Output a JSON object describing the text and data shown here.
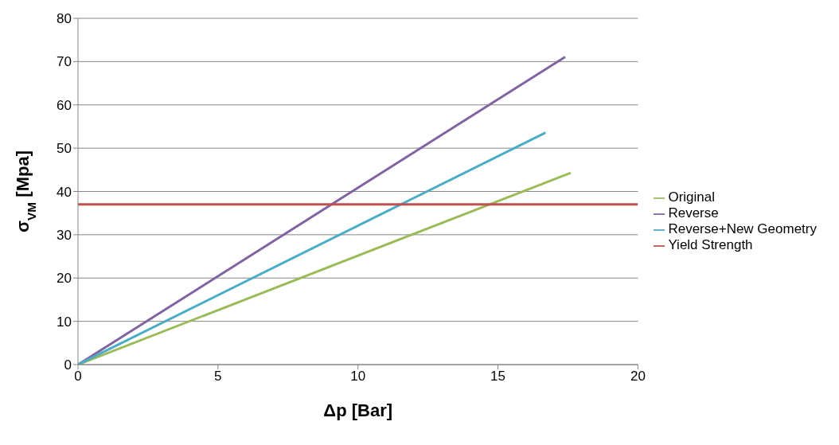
{
  "chart_data": {
    "type": "line",
    "xlabel": "Δp [Bar]",
    "ylabel": "σ$_{VM}$ [Mpa]",
    "xlim": [
      0,
      20
    ],
    "xticks": [
      0,
      5,
      10,
      15,
      20
    ],
    "ylim": [
      0,
      80
    ],
    "yticks": [
      0,
      10,
      20,
      30,
      40,
      50,
      60,
      70,
      80
    ],
    "grid": "y",
    "legend": "right",
    "marker": "none",
    "line_style": "solid",
    "series": [
      {
        "name": "Original",
        "color": "#9bbb59",
        "x": [
          0,
          17.6
        ],
        "values": [
          0,
          44.3
        ]
      },
      {
        "name": "Reverse",
        "color": "#8064a2",
        "x": [
          0,
          17.4
        ],
        "values": [
          0,
          71.1
        ]
      },
      {
        "name": "Reverse+New Geometry",
        "color": "#4bacc6",
        "x": [
          0,
          16.7
        ],
        "values": [
          0,
          53.6
        ]
      },
      {
        "name": "Yield Strength",
        "color": "#c0504d",
        "x": [
          0,
          20
        ],
        "values": [
          37,
          37
        ]
      }
    ]
  }
}
